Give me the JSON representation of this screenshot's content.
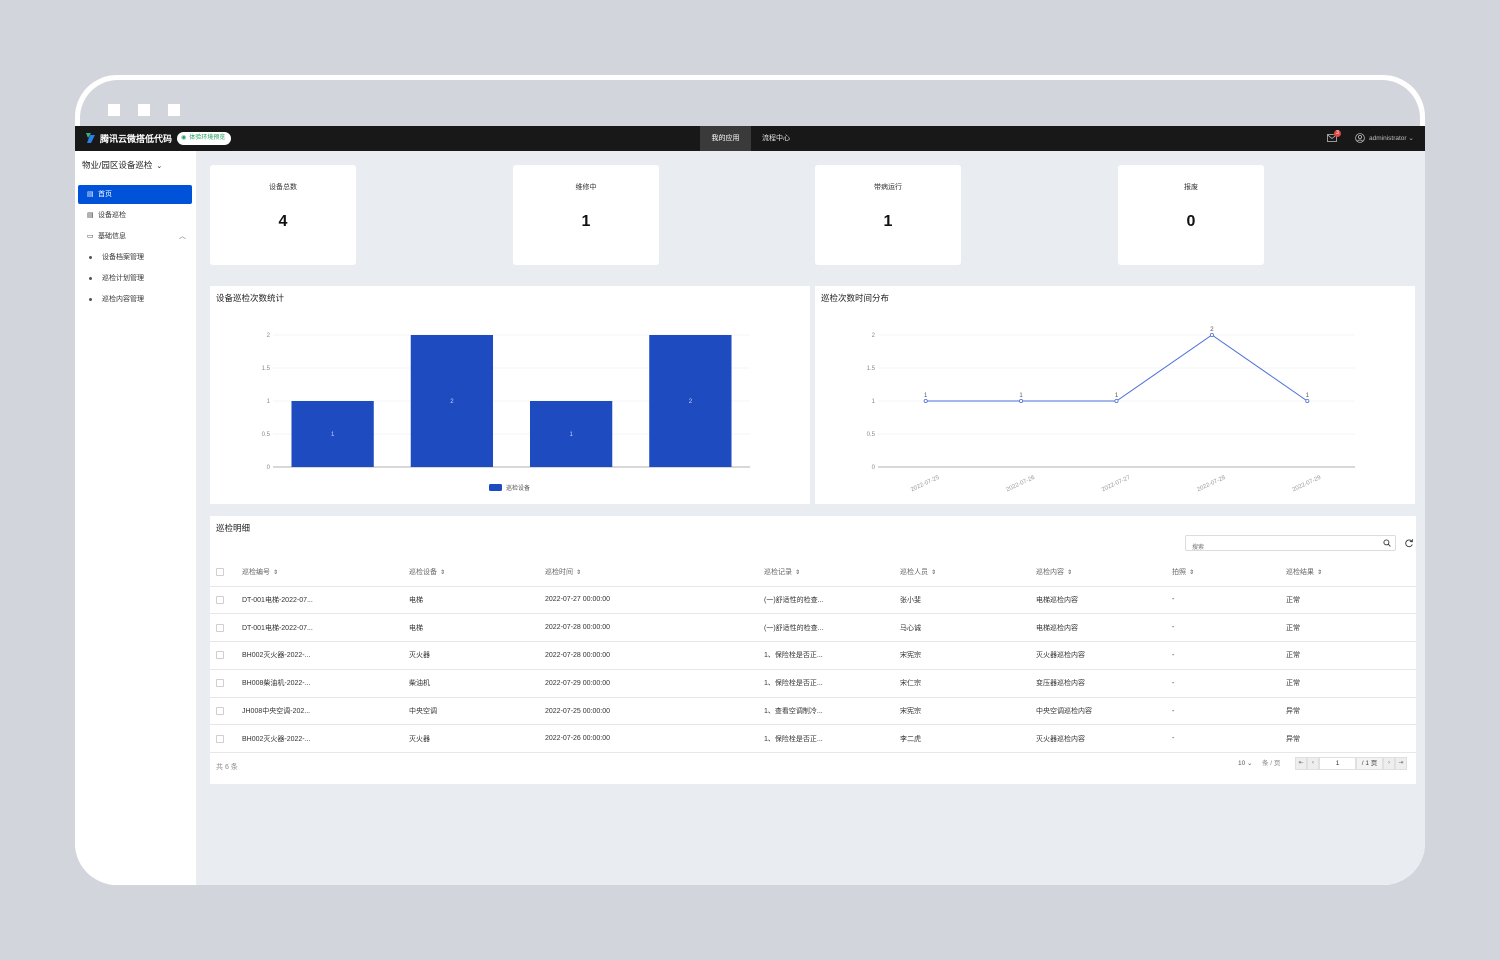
{
  "topnav": {
    "brand": "腾讯云微搭低代码",
    "env_badge": "体验环境预览",
    "tabs": [
      "我的应用",
      "流程中心"
    ],
    "active_tab": 0,
    "mail_count": "3",
    "user": "administrator",
    "user_chevron": "⌄"
  },
  "sidebar": {
    "app_name": "物业/园区设备巡检",
    "items": [
      {
        "label": "首页",
        "icon": "page-icon"
      },
      {
        "label": "设备巡检",
        "icon": "page-icon"
      },
      {
        "label": "基础信息",
        "icon": "folder-icon"
      }
    ],
    "sub_items": [
      "设备档案管理",
      "巡检计划管理",
      "巡检内容管理"
    ]
  },
  "stats": [
    {
      "label": "设备总数",
      "value": "4"
    },
    {
      "label": "维修中",
      "value": "1"
    },
    {
      "label": "带病运行",
      "value": "1"
    },
    {
      "label": "报废",
      "value": "0"
    }
  ],
  "chart_data": [
    {
      "type": "bar",
      "title": "设备巡检次数统计",
      "categories": [
        "",
        "",
        "",
        ""
      ],
      "series": [
        {
          "name": "巡检设备",
          "values": [
            1,
            2,
            1,
            2
          ]
        }
      ],
      "yticks": [
        "0",
        "0.5",
        "1",
        "1.5",
        "2"
      ],
      "ylim": [
        0,
        2
      ],
      "bar_color": "#1e4cc0",
      "legend": "bottom-center",
      "grid": true
    },
    {
      "type": "line",
      "title": "巡检次数时间分布",
      "x": [
        "2022-07-25",
        "2022-07-26",
        "2022-07-27",
        "2022-07-28",
        "2022-07-29"
      ],
      "values": [
        1,
        1,
        1,
        2,
        1
      ],
      "yticks": [
        "0",
        "0.5",
        "1",
        "1.5",
        "2"
      ],
      "ylim": [
        0,
        2
      ],
      "line_color": "#4a6fd8",
      "grid": true
    }
  ],
  "table": {
    "title": "巡检明细",
    "search_placeholder": "搜索",
    "columns": [
      "巡检编号",
      "巡检设备",
      "巡检时间",
      "巡检记录",
      "巡检人员",
      "巡检内容",
      "拍照",
      "巡检结果"
    ],
    "rows": [
      [
        "DT-001电梯-2022-07...",
        "电梯",
        "2022-07-27 00:00:00",
        "(一)舒适性的检查...",
        "张小斐",
        "电梯巡检内容",
        "-",
        "正常"
      ],
      [
        "DT-001电梯-2022-07...",
        "电梯",
        "2022-07-28 00:00:00",
        "(一)舒适性的检查...",
        "马心诚",
        "电梯巡检内容",
        "-",
        "正常"
      ],
      [
        "BH002灭火器-2022-...",
        "灭火器",
        "2022-07-28 00:00:00",
        "1、保险栓是否正...",
        "宋宪宗",
        "灭火器巡检内容",
        "-",
        "正常"
      ],
      [
        "BH008柴油机-2022-...",
        "柴油机",
        "2022-07-29 00:00:00",
        "1、保险栓是否正...",
        "宋仁宗",
        "变压器巡检内容",
        "-",
        "正常"
      ],
      [
        "JH008中央空调-202...",
        "中央空调",
        "2022-07-25 00:00:00",
        "1、查看空调制冷...",
        "宋宪宗",
        "中央空调巡检内容",
        "-",
        "异常"
      ],
      [
        "BH002灭火器-2022-...",
        "灭火器",
        "2022-07-26 00:00:00",
        "1、保险栓是否正...",
        "李二虎",
        "灭火器巡检内容",
        "-",
        "异常"
      ]
    ],
    "total_text": "共 6 条",
    "page_size": "10",
    "page_size_unit": "条 / 页",
    "current_page": "1",
    "total_pages": "/ 1 页"
  }
}
